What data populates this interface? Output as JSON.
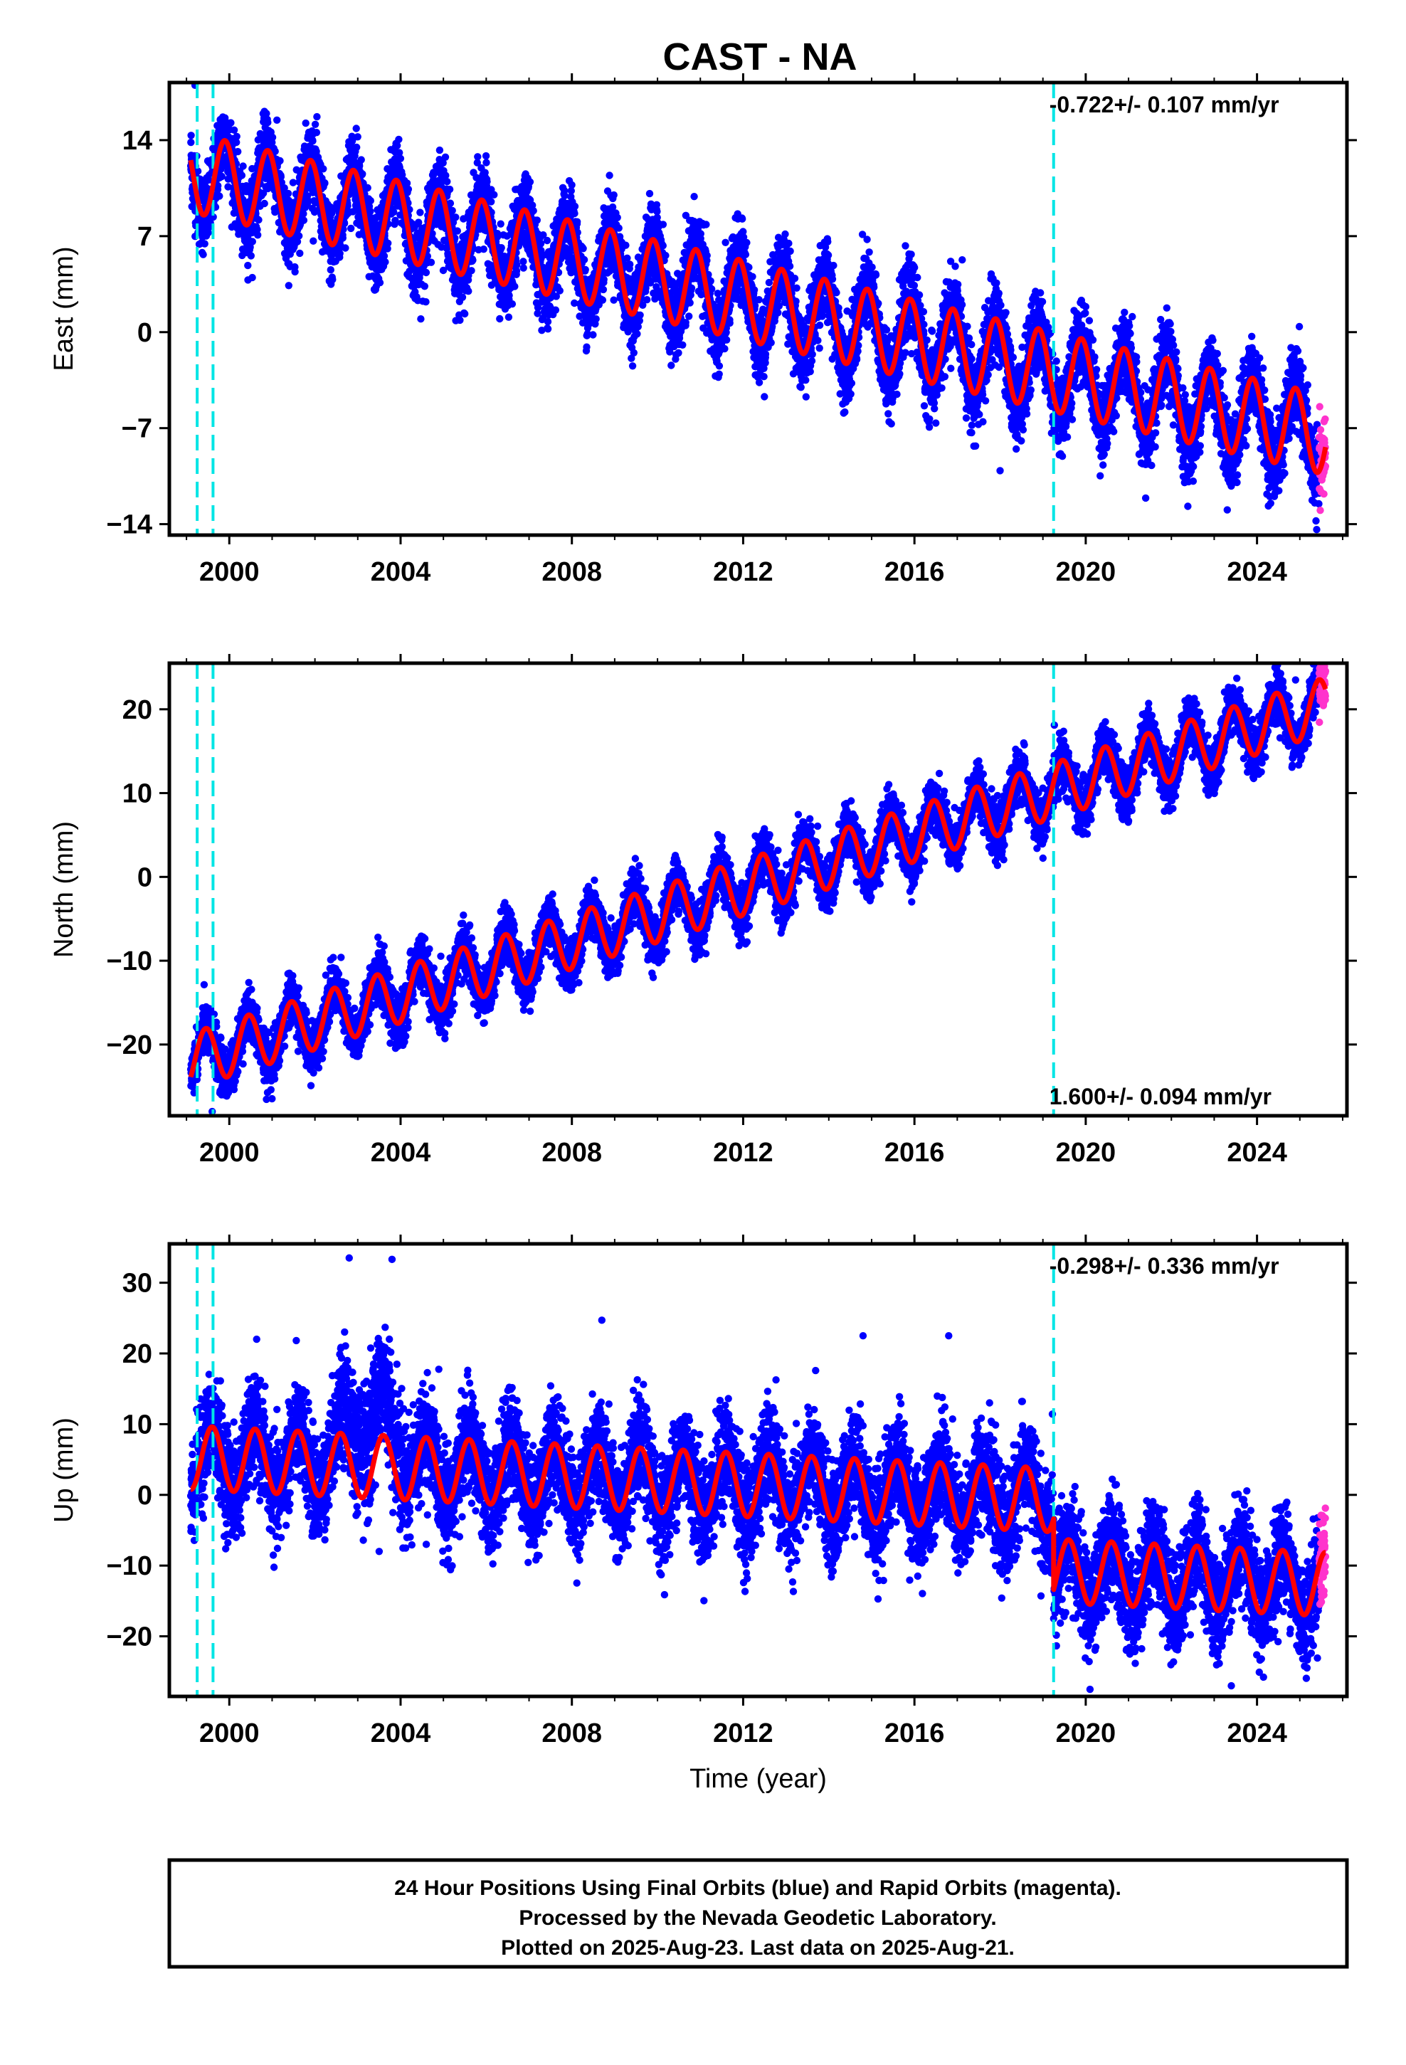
{
  "title": "CAST - NA",
  "footer": {
    "line1": "24 Hour Positions Using Final Orbits (blue) and Rapid Orbits (magenta).",
    "line2": "Processed by the Nevada Geodetic Laboratory.",
    "line3": "Plotted on 2025-Aug-23. Last data on 2025-Aug-21."
  },
  "colors": {
    "final_orbits": "#0000ff",
    "rapid_orbits": "#ff33cc",
    "model": "#ff0000",
    "steps": "#00e5e5"
  },
  "chart_data": [
    {
      "type": "scatter",
      "component": "East",
      "ylabel": "East (mm)",
      "xlabel": "",
      "xlim": [
        1998.6,
        2026.1
      ],
      "ylim": [
        -14.8,
        18.2
      ],
      "yticks": [
        14,
        7,
        0,
        -7,
        -14
      ],
      "xticks": [
        2000,
        2004,
        2008,
        2012,
        2016,
        2020,
        2024
      ],
      "rate": "-0.722+/- 0.107 mm/yr",
      "rate_position": "top-right",
      "step_lines": [
        1999.25,
        1999.62,
        2019.25
      ],
      "model": {
        "start": 1999.1,
        "end": 2025.6,
        "intercept_at_2000": 11.0,
        "trend_mm_per_yr": -0.722,
        "annual_amplitude": 2.9,
        "peak_phase_year_fraction": 0.9,
        "offsets": []
      },
      "scatter_sd": 1.4,
      "rapid_from": 2025.45,
      "outliers": [
        [
          1999.2,
          18.0
        ],
        [
          2013.9,
          6.5
        ],
        [
          2018.0,
          -10.1
        ],
        [
          2021.4,
          -12.1
        ]
      ]
    },
    {
      "type": "scatter",
      "component": "North",
      "ylabel": "North (mm)",
      "xlabel": "",
      "xlim": [
        1998.6,
        2026.1
      ],
      "ylim": [
        -28.5,
        25.5
      ],
      "yticks": [
        20,
        10,
        0,
        -10,
        -20
      ],
      "xticks": [
        2000,
        2004,
        2008,
        2012,
        2016,
        2020,
        2024
      ],
      "rate": "1.600+/- 0.094 mm/yr",
      "rate_position": "bottom-right",
      "step_lines": [
        1999.25,
        1999.62,
        2019.25
      ],
      "model": {
        "start": 1999.1,
        "end": 2025.6,
        "intercept_at_2000": -20.5,
        "trend_mm_per_yr": 1.6,
        "annual_amplitude": 3.3,
        "peak_phase_year_fraction": 0.45,
        "offsets": []
      },
      "scatter_sd": 1.5,
      "rapid_from": 2025.45,
      "outliers": [
        [
          1999.6,
          -28.0
        ],
        [
          2009.9,
          -12.0
        ],
        [
          2024.9,
          23.5
        ]
      ]
    },
    {
      "type": "scatter",
      "component": "Up",
      "ylabel": "Up (mm)",
      "xlabel": "Time (year)",
      "xlim": [
        1998.6,
        2026.1
      ],
      "ylim": [
        -28.5,
        35.5
      ],
      "yticks": [
        30,
        20,
        10,
        0,
        -10,
        -20
      ],
      "xticks": [
        2000,
        2004,
        2008,
        2012,
        2016,
        2020,
        2024
      ],
      "rate": "-0.298+/- 0.336 mm/yr",
      "rate_position": "top-right",
      "step_lines": [
        1999.25,
        1999.62,
        2019.25
      ],
      "model": {
        "start": 1999.1,
        "end": 2025.6,
        "intercept_at_2000": 5.0,
        "trend_mm_per_yr": -0.298,
        "annual_amplitude": 4.5,
        "peak_phase_year_fraction": 0.6,
        "offsets": [
          [
            2019.25,
            -10.0
          ]
        ]
      },
      "scatter_sd": 3.6,
      "anomaly": {
        "from": 2002.2,
        "to": 2004.4,
        "extra_mean": 7.0
      },
      "rapid_from": 2025.45,
      "outliers": [
        [
          2002.8,
          33.5
        ],
        [
          2003.8,
          33.3
        ],
        [
          2008.7,
          24.7
        ],
        [
          2014.8,
          22.5
        ],
        [
          2016.8,
          22.5
        ],
        [
          2020.1,
          -27.5
        ],
        [
          2023.4,
          -27.0
        ],
        [
          2003.5,
          -8.0
        ],
        [
          2004.6,
          -7.0
        ]
      ]
    }
  ]
}
